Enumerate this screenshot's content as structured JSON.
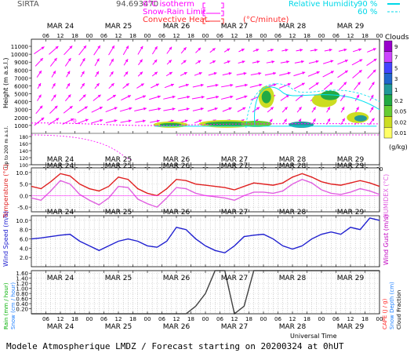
{
  "header": {
    "site": "SIRTA",
    "coords": "94.693470",
    "legend_isotherm": "0°C isotherm",
    "legend_snowrain": "Snow-Rain Limit",
    "legend_convective": "Convective Heat.",
    "legend_convective_unit": "(°C/minute)",
    "legend_rh": "Relative Humidity",
    "rh_levels": [
      "90 %",
      "60 %"
    ]
  },
  "footer": "Modele Atmospherique LMDZ / Forecast starting on 20200324 at 0hUT",
  "colors": {
    "wind_arrow": "#ff00ff",
    "isotherm": "#ff00ff",
    "temperature": "#e02020",
    "humidex": "#e060e0",
    "wind_speed": "#2020d0",
    "precip": "#404040",
    "rh": "#00e0f0"
  },
  "chart_data": [
    {
      "type": "heatmap",
      "panel": "clouds",
      "ylabel": "Height (m a.s.l.)",
      "ylabel_lower": "Up to 200 m a.s.l.",
      "y_ticks_upper": [
        1000,
        2000,
        3000,
        4000,
        5000,
        6000,
        7000,
        8000,
        9000,
        10000,
        11000
      ],
      "y_ticks_lower": [
        100,
        120,
        140,
        160,
        180
      ],
      "colorbar_title": "Clouds",
      "colorbar_unit": "(g/kg)",
      "colorbar_ticks": [
        "9",
        "7",
        "5",
        "3",
        "1",
        "0.2",
        "0.05",
        "0.02",
        "0.01"
      ],
      "colorbar_colors": [
        "#9900cc",
        "#cc44ff",
        "#4444ff",
        "#2266cc",
        "#229999",
        "#22aa44",
        "#66cc33",
        "#ccdd22",
        "#ffff66"
      ],
      "isotherm_label": "0"
    },
    {
      "type": "line",
      "panel": "temperature",
      "ylabel": "Temperature (°C)",
      "ylabel_right": "HUMIDEX (°C)",
      "y_ticks": [
        "-5.0",
        "0.0",
        "5.0",
        "10.0"
      ],
      "ylim": [
        -7,
        12
      ],
      "series": [
        {
          "name": "Temperature",
          "values": [
            4.0,
            3.0,
            6.0,
            9.5,
            8.5,
            5.0,
            3.0,
            2.0,
            4.0,
            8.0,
            7.0,
            3.0,
            1.0,
            0.0,
            3.0,
            7.0,
            6.5,
            5.0,
            4.5,
            4.0,
            3.5,
            2.5,
            4.0,
            5.5,
            5.0,
            4.5,
            5.5,
            8.0,
            9.5,
            8.0,
            6.0,
            5.0,
            4.5,
            5.5,
            6.5,
            5.5,
            4.0
          ]
        },
        {
          "name": "HUMIDEX",
          "values": [
            -1.0,
            -2.0,
            2.0,
            6.5,
            5.0,
            0.5,
            -2.0,
            -4.0,
            -1.0,
            4.0,
            3.5,
            -1.5,
            -3.5,
            -5.0,
            -1.0,
            3.5,
            3.0,
            1.0,
            0.0,
            -0.5,
            -1.0,
            -2.0,
            0.0,
            1.5,
            1.5,
            1.0,
            2.0,
            5.0,
            7.0,
            5.5,
            2.5,
            1.0,
            0.5,
            1.5,
            3.0,
            2.0,
            0.5
          ]
        }
      ]
    },
    {
      "type": "line",
      "panel": "wind",
      "ylabel": "Wind Speed (m/s)",
      "ylabel_right": "Wind Gust (m/s)",
      "y_ticks": [
        "2.0",
        "4.0",
        "6.0",
        "8.0",
        "10.0"
      ],
      "ylim": [
        0,
        11
      ],
      "series": [
        {
          "name": "Wind Speed",
          "values": [
            6.0,
            6.2,
            6.5,
            6.8,
            7.0,
            5.5,
            4.5,
            3.5,
            4.5,
            5.5,
            6.0,
            5.5,
            4.5,
            4.2,
            5.5,
            8.5,
            8.0,
            6.0,
            4.5,
            3.5,
            3.0,
            4.5,
            6.5,
            6.8,
            7.0,
            6.0,
            4.5,
            3.8,
            4.5,
            6.0,
            7.0,
            7.5,
            7.0,
            8.5,
            8.0,
            10.5,
            10.0
          ]
        }
      ]
    },
    {
      "type": "line",
      "panel": "precipitation",
      "ylabel_left": [
        "Rain (mm / hour)",
        "Snow (cm / hour)"
      ],
      "ylabel_right": [
        "CAPE (J / g)",
        "Snow Depth (cm)",
        "Cloud Fraction"
      ],
      "y_ticks": [
        "0.20",
        "0.40",
        "0.60",
        "0.80",
        "1.00",
        "1.20",
        "1.40",
        "1.60"
      ],
      "ylim": [
        0,
        1.7
      ],
      "series": [
        {
          "name": "Cloud Fraction",
          "values": [
            0,
            0,
            0,
            0,
            0,
            0,
            0,
            0,
            0,
            0,
            0,
            0,
            0,
            0,
            0,
            0,
            0,
            0.3,
            0.8,
            1.7,
            1.7,
            0,
            0.3,
            1.7,
            1.7,
            1.7,
            1.7,
            1.7,
            1.7,
            1.7,
            1.7,
            1.7,
            1.7,
            1.7,
            1.7,
            1.7,
            1.7
          ]
        }
      ]
    }
  ],
  "axis": {
    "days": [
      "MAR 24",
      "MAR 25",
      "MAR 26",
      "MAR 27",
      "MAR 28",
      "MAR 29"
    ],
    "hours": [
      "06",
      "12",
      "18",
      "00"
    ],
    "xlabel": "Universal Time"
  }
}
